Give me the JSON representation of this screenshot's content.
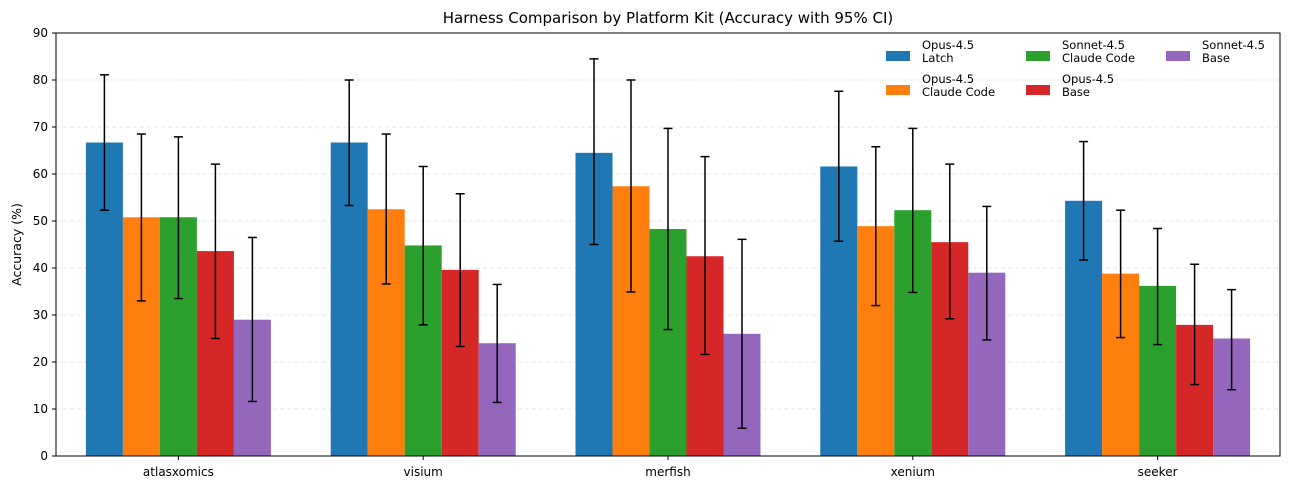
{
  "chart_data": {
    "type": "bar",
    "title": "Harness Comparison by Platform Kit (Accuracy with 95% CI)",
    "xlabel": "",
    "ylabel": "Accuracy (%)",
    "ylim": [
      0,
      90
    ],
    "yticks": [
      0,
      10,
      20,
      30,
      40,
      50,
      60,
      70,
      80,
      90
    ],
    "grid": "horizontal dashed",
    "legend_position": "top-right",
    "categories": [
      "atlasxomics",
      "visium",
      "merfish",
      "xenium",
      "seeker"
    ],
    "series": [
      {
        "name": "Opus-4.5\nLatch",
        "color": "#1f77b4",
        "values": [
          66.7,
          66.7,
          64.5,
          61.6,
          54.3
        ],
        "ci_low": [
          52.3,
          53.3,
          45.0,
          45.7,
          41.7
        ],
        "ci_high": [
          81.1,
          80.0,
          84.5,
          77.6,
          66.9
        ]
      },
      {
        "name": "Opus-4.5\nClaude Code",
        "color": "#ff7f0e",
        "values": [
          50.8,
          52.5,
          57.4,
          48.9,
          38.8
        ],
        "ci_low": [
          33.0,
          36.6,
          34.9,
          32.0,
          25.2
        ],
        "ci_high": [
          68.5,
          68.5,
          80.0,
          65.8,
          52.3
        ]
      },
      {
        "name": "Sonnet-4.5\nClaude Code",
        "color": "#2ca02c",
        "values": [
          50.8,
          44.8,
          48.3,
          52.3,
          36.2
        ],
        "ci_low": [
          33.5,
          27.9,
          26.9,
          34.8,
          23.7
        ],
        "ci_high": [
          67.9,
          61.6,
          69.7,
          69.7,
          48.4
        ]
      },
      {
        "name": "Opus-4.5\nBase",
        "color": "#d62728",
        "values": [
          43.6,
          39.6,
          42.5,
          45.5,
          27.9
        ],
        "ci_low": [
          25.0,
          23.3,
          21.6,
          29.2,
          15.2
        ],
        "ci_high": [
          62.1,
          55.8,
          63.7,
          62.1,
          40.8
        ]
      },
      {
        "name": "Sonnet-4.5\nBase",
        "color": "#9467bd",
        "values": [
          29.0,
          24.0,
          26.0,
          39.0,
          25.0
        ],
        "ci_low": [
          11.6,
          11.4,
          5.9,
          24.7,
          14.1
        ],
        "ci_high": [
          46.5,
          36.5,
          46.1,
          53.1,
          35.4
        ]
      }
    ]
  }
}
